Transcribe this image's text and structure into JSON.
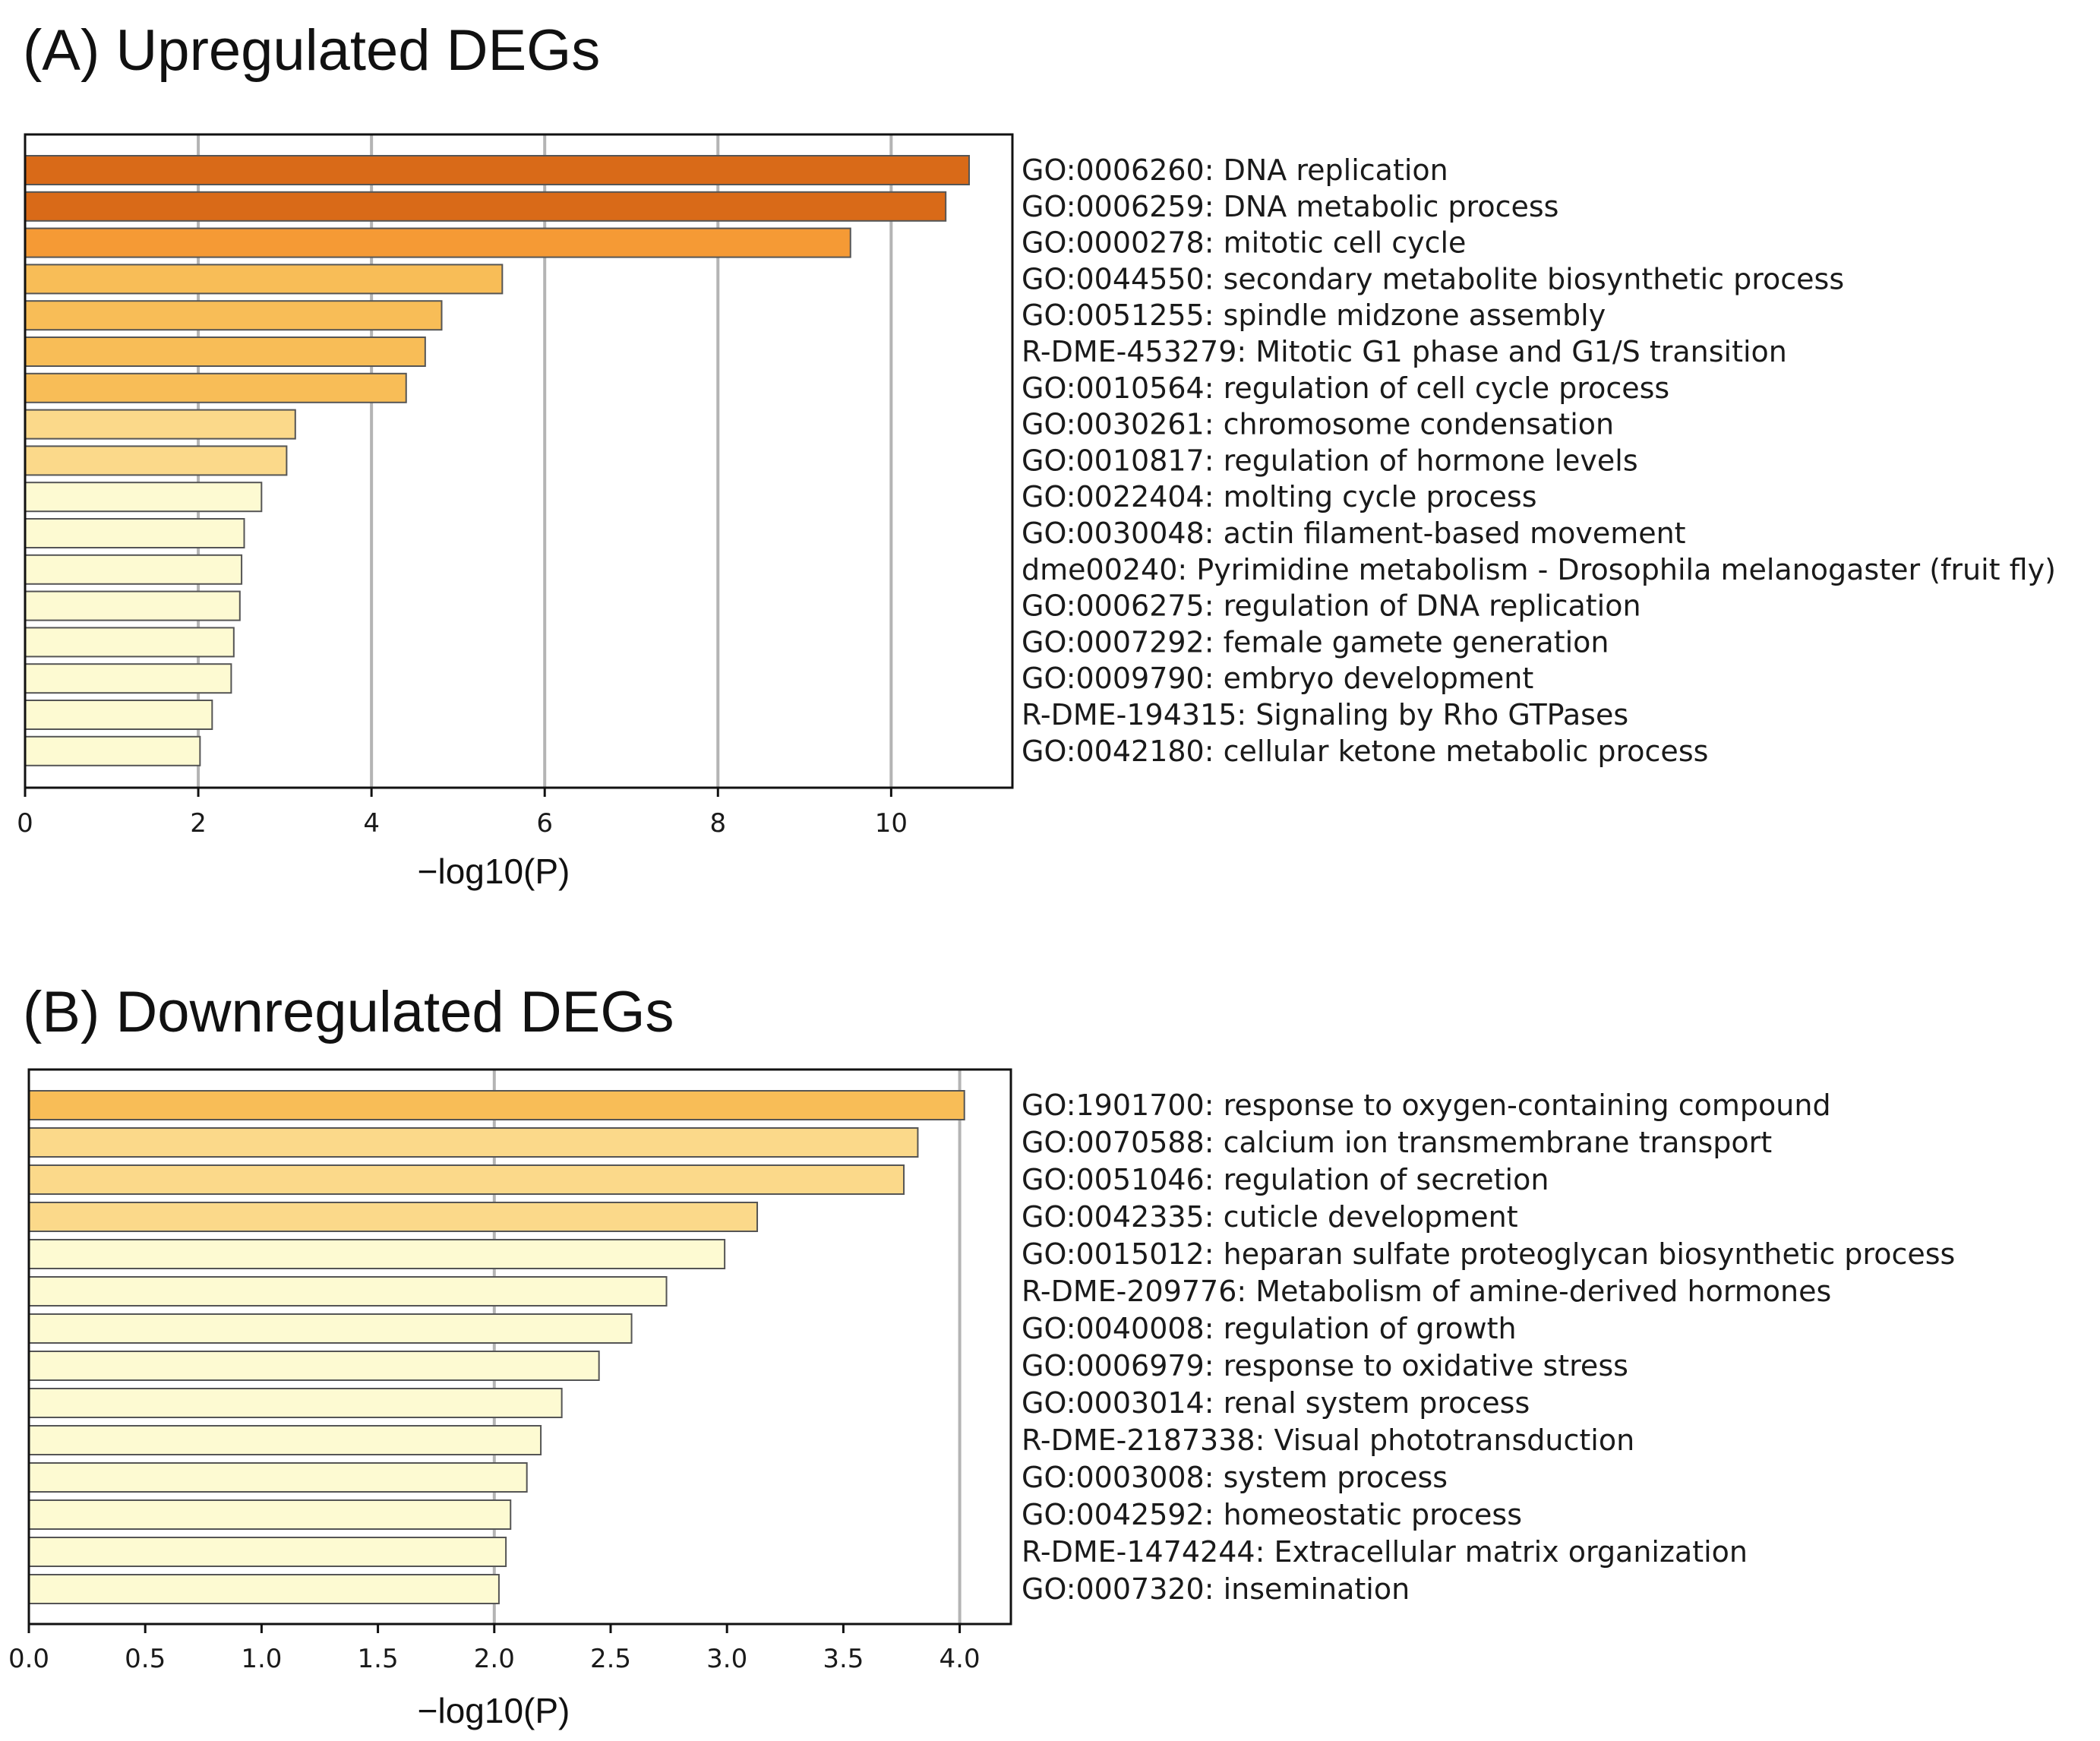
{
  "chart_data": [
    {
      "type": "bar",
      "orientation": "horizontal",
      "title": "(A) Upregulated DEGs",
      "xlabel": "−log10(P)",
      "ylabel": "",
      "xlim": [
        0,
        11.4
      ],
      "xticks": [
        0,
        2,
        4,
        6,
        8,
        10
      ],
      "xtick_labels": [
        "0",
        "2",
        "4",
        "6",
        "8",
        "10"
      ],
      "grid": true,
      "categories": [
        "GO:0006260: DNA replication",
        "GO:0006259: DNA metabolic process",
        "GO:0000278: mitotic cell cycle",
        "GO:0044550: secondary metabolite biosynthetic process",
        "GO:0051255: spindle midzone assembly",
        "R-DME-453279: Mitotic G1 phase and G1/S transition",
        "GO:0010564: regulation of cell cycle process",
        "GO:0030261: chromosome condensation",
        "GO:0010817: regulation of hormone levels",
        "GO:0022404: molting cycle process",
        "GO:0030048: actin filament-based movement",
        "dme00240: Pyrimidine metabolism - Drosophila melanogaster (fruit fly)",
        "GO:0006275: regulation of DNA replication",
        "GO:0007292: female gamete generation",
        "GO:0009790: embryo development",
        "R-DME-194315: Signaling by Rho GTPases",
        "GO:0042180: cellular ketone metabolic process"
      ],
      "values": [
        10.9,
        10.63,
        9.53,
        5.51,
        4.81,
        4.62,
        4.4,
        3.12,
        3.02,
        2.73,
        2.53,
        2.5,
        2.48,
        2.41,
        2.38,
        2.16,
        2.02
      ],
      "colors": [
        "#d96a18",
        "#d96a18",
        "#f59a35",
        "#f8bd57",
        "#f8bd57",
        "#f8bd57",
        "#f8bd57",
        "#fbd98a",
        "#fbd98a",
        "#fdfad2",
        "#fdfad2",
        "#fdfad2",
        "#fdfad2",
        "#fdfad2",
        "#fdfad2",
        "#fdfad2",
        "#fdfad2"
      ]
    },
    {
      "type": "bar",
      "orientation": "horizontal",
      "title": "(B) Downregulated DEGs",
      "xlabel": "−log10(P)",
      "ylabel": "",
      "xlim": [
        0,
        4.22
      ],
      "xticks": [
        0,
        0.5,
        1,
        1.5,
        2,
        2.5,
        3,
        3.5,
        4
      ],
      "xtick_labels": [
        "0.0",
        "0.5",
        "1.0",
        "1.5",
        "2.0",
        "2.5",
        "3.0",
        "3.5",
        "4.0"
      ],
      "grid": true,
      "grid_ticks": [
        2,
        4
      ],
      "categories": [
        "GO:1901700: response to oxygen-containing compound",
        "GO:0070588: calcium ion transmembrane transport",
        "GO:0051046: regulation of secretion",
        "GO:0042335: cuticle development",
        "GO:0015012: heparan sulfate proteoglycan biosynthetic process",
        "R-DME-209776: Metabolism of amine-derived hormones",
        "GO:0040008: regulation of growth",
        "GO:0006979: response to oxidative stress",
        "GO:0003014: renal system process",
        "R-DME-2187338: Visual phototransduction",
        "GO:0003008: system process",
        "GO:0042592: homeostatic process",
        "R-DME-1474244: Extracellular matrix organization",
        "GO:0007320: insemination"
      ],
      "values": [
        4.02,
        3.82,
        3.76,
        3.13,
        2.99,
        2.74,
        2.59,
        2.45,
        2.29,
        2.2,
        2.14,
        2.07,
        2.05,
        2.02
      ],
      "colors": [
        "#f8bd57",
        "#fbd98a",
        "#fbd98a",
        "#fbd98a",
        "#fdfad2",
        "#fdfad2",
        "#fdfad2",
        "#fdfad2",
        "#fdfad2",
        "#fdfad2",
        "#fdfad2",
        "#fdfad2",
        "#fdfad2",
        "#fdfad2"
      ]
    }
  ]
}
